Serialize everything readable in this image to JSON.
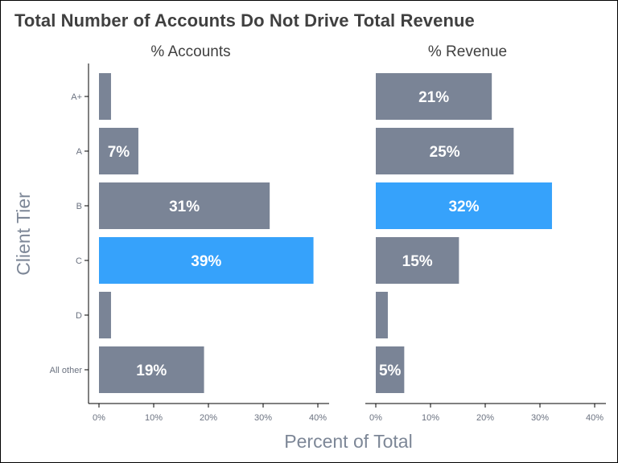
{
  "title": "Total Number of Accounts Do Not Drive Total Revenue",
  "chart_data": {
    "type": "bar",
    "orientation": "horizontal",
    "title": "Total Number of Accounts Do Not Drive Total Revenue",
    "xlabel": "Percent of Total",
    "ylabel": "Client Tier",
    "categories": [
      "A+",
      "A",
      "B",
      "C",
      "D",
      "All other"
    ],
    "xlim": [
      0,
      40
    ],
    "x_ticks": [
      "0%",
      "10%",
      "20%",
      "30%",
      "40%"
    ],
    "grid": false,
    "colors": {
      "default": "#7a8496",
      "highlight": "#36a2fb"
    },
    "panels": [
      {
        "facet_title": "% Accounts",
        "values": [
          2.2,
          7.2,
          31.2,
          39.2,
          2.2,
          19.2
        ],
        "labels": [
          "",
          "7%",
          "31%",
          "39%",
          "",
          "19%"
        ],
        "highlight": [
          false,
          false,
          false,
          true,
          false,
          false
        ]
      },
      {
        "facet_title": "% Revenue",
        "values": [
          21.2,
          25.2,
          32.2,
          15.2,
          2.2,
          5.2
        ],
        "labels": [
          "21%",
          "25%",
          "32%",
          "15%",
          "",
          "5%"
        ],
        "highlight": [
          false,
          false,
          true,
          false,
          false,
          false
        ]
      }
    ]
  }
}
